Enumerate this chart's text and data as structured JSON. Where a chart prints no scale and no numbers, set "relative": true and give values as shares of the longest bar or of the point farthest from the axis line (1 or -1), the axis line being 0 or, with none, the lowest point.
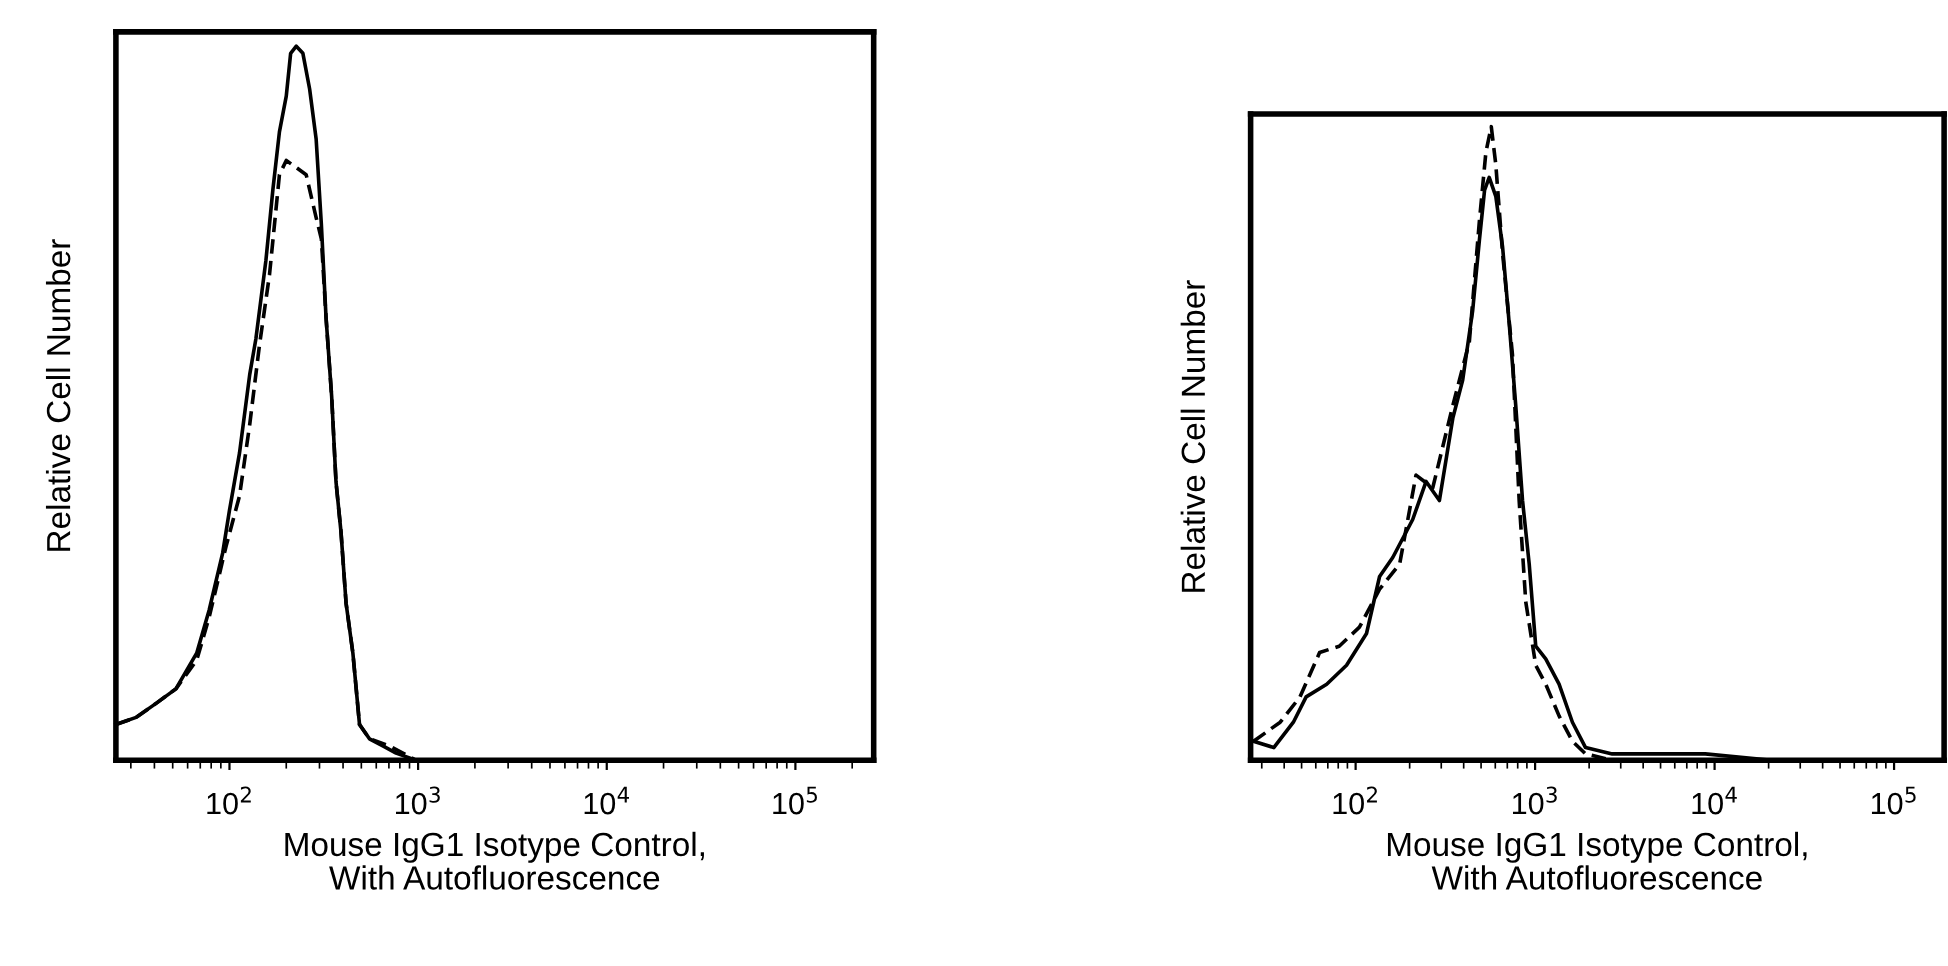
{
  "chart_data": [
    {
      "type": "line",
      "relative": true,
      "log": "x",
      "xlim": [
        25,
        260000
      ],
      "xticks": [
        {
          "value": 100,
          "label": "10$^{2}$"
        },
        {
          "value": 1000,
          "label": "10$^{3}$"
        },
        {
          "value": 10000,
          "label": "10$^{4}$"
        },
        {
          "value": 100000,
          "label": "10$^{5}$"
        }
      ],
      "xlabel": "Mouse IgG1 Isotype Control,\nWith Autofluorescence",
      "ylabel": "Relative Cell Number",
      "tick_labels": "x",
      "series": [
        {
          "color": "#000000",
          "line_style": "solid",
          "x": [
            25,
            32,
            41,
            52,
            67,
            78,
            92,
            100,
            113,
            128,
            138,
            156,
            170,
            184,
            200,
            211,
            226,
            245,
            266,
            288,
            307,
            325,
            348,
            367,
            390,
            415,
            451,
            489,
            552,
            650,
            764,
            977
          ],
          "values": [
            0.05,
            0.06,
            0.08,
            0.1,
            0.15,
            0.21,
            0.29,
            0.35,
            0.43,
            0.54,
            0.59,
            0.7,
            0.8,
            0.88,
            0.93,
            0.99,
            1.0,
            0.99,
            0.94,
            0.87,
            0.75,
            0.62,
            0.51,
            0.39,
            0.32,
            0.22,
            0.15,
            0.05,
            0.03,
            0.02,
            0.01,
            0
          ]
        },
        {
          "color": "#000000",
          "line_style": "dashed",
          "x": [
            25,
            32,
            41,
            52,
            67,
            78,
            96,
            113,
            128,
            144,
            163,
            184,
            200,
            226,
            255,
            288,
            307,
            325,
            348,
            367,
            390,
            415,
            451,
            489,
            552,
            705,
            977
          ],
          "values": [
            0.05,
            0.06,
            0.08,
            0.1,
            0.14,
            0.2,
            0.3,
            0.37,
            0.47,
            0.58,
            0.68,
            0.82,
            0.84,
            0.83,
            0.82,
            0.76,
            0.73,
            0.62,
            0.51,
            0.39,
            0.32,
            0.22,
            0.15,
            0.05,
            0.03,
            0.02,
            0
          ]
        }
      ]
    },
    {
      "type": "line",
      "relative": true,
      "log": "x",
      "xlim": [
        26,
        190000
      ],
      "xticks": [
        {
          "value": 100,
          "label": "10$^{2}$"
        },
        {
          "value": 1000,
          "label": "10$^{3}$"
        },
        {
          "value": 10000,
          "label": "10$^{4}$"
        },
        {
          "value": 100000,
          "label": "10$^{5}$"
        }
      ],
      "xlabel": "Mouse IgG1 Isotype Control,\nWith Autofluorescence",
      "ylabel": "Relative Cell Number",
      "tick_labels": "x",
      "series": [
        {
          "color": "#000000",
          "line_style": "solid",
          "x": [
            27,
            35,
            45,
            53,
            69,
            89,
            115,
            136,
            161,
            208,
            247,
            293,
            348,
            395,
            449,
            489,
            523,
            555,
            604,
            659,
            717,
            780,
            851,
            927,
            1008,
            1146,
            1360,
            1614,
            1910,
            2690,
            8870,
            20800,
            175000
          ],
          "values": [
            0.03,
            0.02,
            0.06,
            0.1,
            0.12,
            0.15,
            0.2,
            0.29,
            0.32,
            0.38,
            0.44,
            0.41,
            0.54,
            0.6,
            0.71,
            0.82,
            0.9,
            0.92,
            0.89,
            0.81,
            0.69,
            0.56,
            0.41,
            0.31,
            0.18,
            0.16,
            0.12,
            0.06,
            0.02,
            0.01,
            0.01,
            0,
            0
          ]
        },
        {
          "color": "#000000",
          "line_style": "dashed",
          "x": [
            27,
            38,
            49,
            63,
            81,
            105,
            136,
            176,
            217,
            269,
            348,
            430,
            489,
            532,
            570,
            604,
            659,
            748,
            815,
            887,
            1008,
            1146,
            1360,
            1614,
            1910,
            2690,
            20800,
            175000
          ],
          "values": [
            0.03,
            0.06,
            0.1,
            0.17,
            0.18,
            0.21,
            0.27,
            0.31,
            0.45,
            0.43,
            0.56,
            0.66,
            0.85,
            0.96,
            1.0,
            0.94,
            0.8,
            0.64,
            0.41,
            0.25,
            0.15,
            0.12,
            0.07,
            0.03,
            0.01,
            0,
            0,
            0
          ]
        }
      ]
    }
  ]
}
